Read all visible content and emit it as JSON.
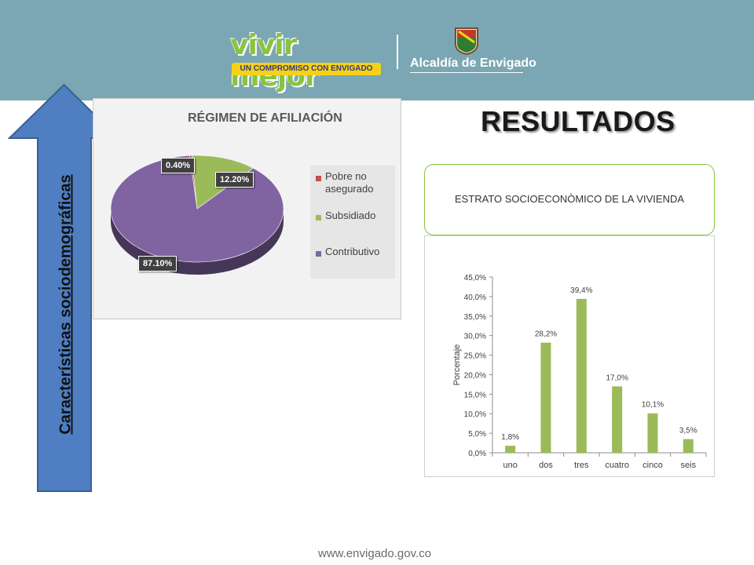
{
  "header": {
    "brand_wordmark": "vivir mejor",
    "brand_tagline": "UN COMPROMISO CON ENVIGADO",
    "org_name": "Alcaldía de Envigado",
    "background_color": "#7aa7b3"
  },
  "side_arrow": {
    "label": "Características sociodemográficas",
    "color": "#4f7fc2"
  },
  "page_title": "RESULTADOS",
  "estrato_box": {
    "title": "ESTRATO SOCIOECONÒMICO DE LA VIVIENDA"
  },
  "chart_data": [
    {
      "type": "pie",
      "title": "RÉGIMEN DE AFILIACIÓN",
      "categories": [
        "Pobre no asegurado",
        "Subsidiado",
        "Contributivo"
      ],
      "values": [
        0.4,
        12.2,
        87.1
      ],
      "data_labels": [
        "0.40%",
        "12.20%",
        "87.10%"
      ],
      "colors": [
        "#c0504d",
        "#9bbb59",
        "#8064a2"
      ],
      "legend_position": "right"
    },
    {
      "type": "bar",
      "title": "",
      "categories": [
        "uno",
        "dos",
        "tres",
        "cuatro",
        "cinco",
        "seis"
      ],
      "values": [
        1.8,
        28.2,
        39.4,
        17.0,
        10.1,
        3.5
      ],
      "data_labels": [
        "1,8%",
        "28,2%",
        "39,4%",
        "17,0%",
        "10,1%",
        "3,5%"
      ],
      "xlabel": "",
      "ylabel": "Porcentaje",
      "ylim": [
        0,
        45
      ],
      "yticks": [
        "0,0%",
        "5,0%",
        "10,0%",
        "15,0%",
        "20,0%",
        "25,0%",
        "30,0%",
        "35,0%",
        "40,0%",
        "45,0%"
      ],
      "color": "#9bbb59",
      "grid": false
    }
  ],
  "footer": {
    "url": "www.envigado.gov.co"
  }
}
